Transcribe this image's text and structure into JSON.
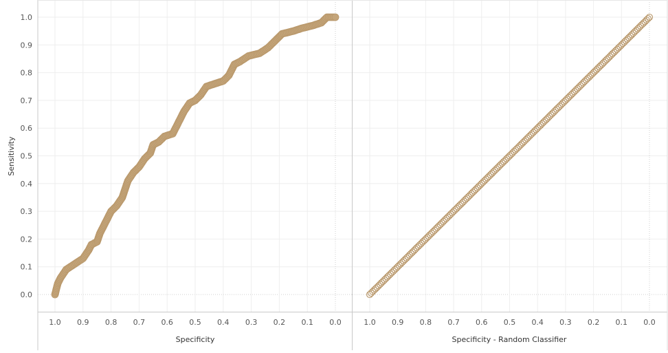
{
  "chart_data": [
    {
      "type": "scatter",
      "title": "",
      "xlabel": "Specificity",
      "ylabel": "Sensitivity",
      "xlim": [
        1.0,
        0.0
      ],
      "ylim": [
        0.0,
        1.0
      ],
      "x_reversed": true,
      "x_ticks": [
        "1.0",
        "0.9",
        "0.8",
        "0.7",
        "0.6",
        "0.5",
        "0.4",
        "0.3",
        "0.2",
        "0.1",
        "0.0"
      ],
      "y_ticks": [
        "1.0",
        "0.9",
        "0.8",
        "0.7",
        "0.6",
        "0.5",
        "0.4",
        "0.3",
        "0.2",
        "0.1",
        "0.0"
      ],
      "grid": true,
      "marker_color": "#c4a57a",
      "curve_knots": [
        [
          1.0,
          0.0
        ],
        [
          0.99,
          0.04
        ],
        [
          0.98,
          0.06
        ],
        [
          0.96,
          0.09
        ],
        [
          0.93,
          0.11
        ],
        [
          0.9,
          0.13
        ],
        [
          0.88,
          0.16
        ],
        [
          0.87,
          0.18
        ],
        [
          0.85,
          0.19
        ],
        [
          0.84,
          0.22
        ],
        [
          0.82,
          0.26
        ],
        [
          0.8,
          0.3
        ],
        [
          0.78,
          0.32
        ],
        [
          0.76,
          0.35
        ],
        [
          0.75,
          0.38
        ],
        [
          0.74,
          0.41
        ],
        [
          0.72,
          0.44
        ],
        [
          0.7,
          0.46
        ],
        [
          0.68,
          0.49
        ],
        [
          0.66,
          0.51
        ],
        [
          0.65,
          0.54
        ],
        [
          0.63,
          0.55
        ],
        [
          0.61,
          0.57
        ],
        [
          0.58,
          0.58
        ],
        [
          0.56,
          0.62
        ],
        [
          0.54,
          0.66
        ],
        [
          0.52,
          0.69
        ],
        [
          0.5,
          0.7
        ],
        [
          0.48,
          0.72
        ],
        [
          0.46,
          0.75
        ],
        [
          0.43,
          0.76
        ],
        [
          0.4,
          0.77
        ],
        [
          0.38,
          0.79
        ],
        [
          0.36,
          0.83
        ],
        [
          0.34,
          0.84
        ],
        [
          0.31,
          0.86
        ],
        [
          0.27,
          0.87
        ],
        [
          0.24,
          0.89
        ],
        [
          0.21,
          0.92
        ],
        [
          0.19,
          0.94
        ],
        [
          0.15,
          0.95
        ],
        [
          0.12,
          0.96
        ],
        [
          0.08,
          0.97
        ],
        [
          0.05,
          0.98
        ],
        [
          0.03,
          1.0
        ],
        [
          0.0,
          1.0
        ]
      ]
    },
    {
      "type": "scatter",
      "title": "",
      "xlabel": "Specificity - Random Classifier",
      "ylabel": "Sensitivity",
      "xlim": [
        1.0,
        0.0
      ],
      "ylim": [
        0.0,
        1.0
      ],
      "x_reversed": true,
      "x_ticks": [
        "1.0",
        "0.9",
        "0.8",
        "0.7",
        "0.6",
        "0.5",
        "0.4",
        "0.3",
        "0.2",
        "0.1",
        "0.0"
      ],
      "grid": true,
      "marker_color": "#c4a57a",
      "line": {
        "from": [
          1.0,
          0.0
        ],
        "to": [
          0.0,
          1.0
        ]
      }
    }
  ]
}
